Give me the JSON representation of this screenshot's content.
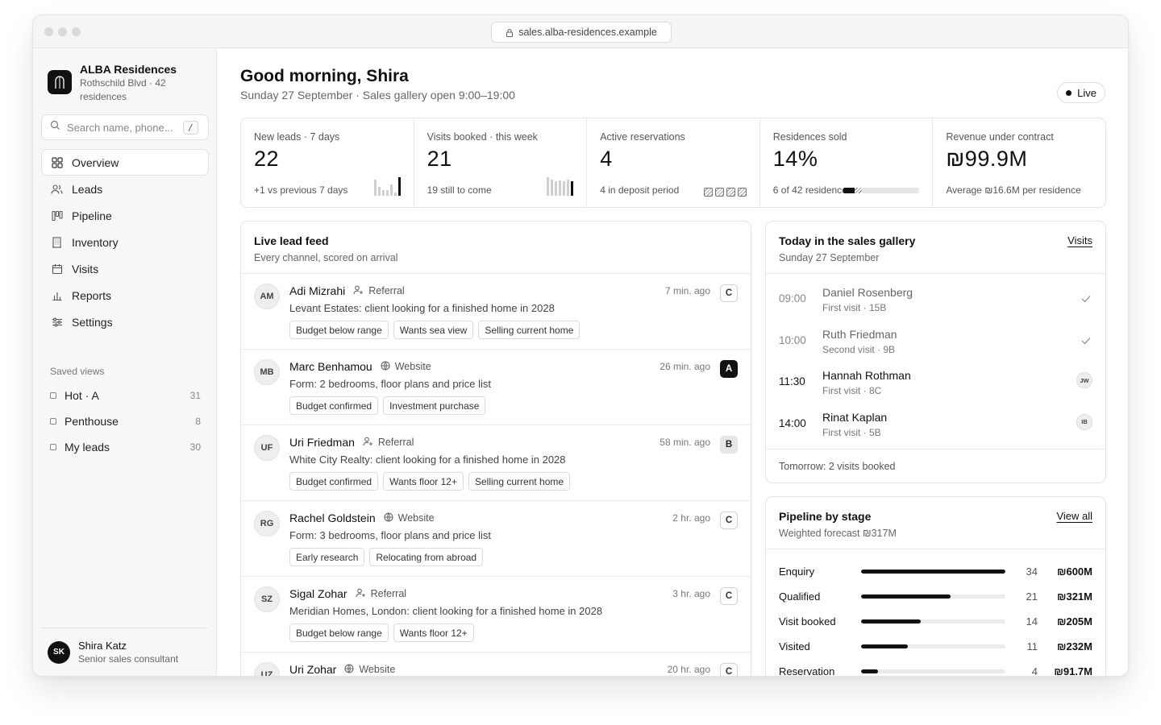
{
  "browser": {
    "url": "sales.alba-residences.example"
  },
  "sidebar": {
    "brand_name": "ALBA Residences",
    "brand_sub": "Rothschild Blvd · 42 residences",
    "search_placeholder": "Search name, phone...",
    "search_shortcut": "/",
    "nav": [
      {
        "label": "Overview",
        "icon": "grid-icon",
        "active": true
      },
      {
        "label": "Leads",
        "icon": "users-icon"
      },
      {
        "label": "Pipeline",
        "icon": "kanban-icon"
      },
      {
        "label": "Inventory",
        "icon": "building-icon"
      },
      {
        "label": "Visits",
        "icon": "calendar-icon"
      },
      {
        "label": "Reports",
        "icon": "bar-chart-icon"
      },
      {
        "label": "Settings",
        "icon": "sliders-icon"
      }
    ],
    "saved_title": "Saved views",
    "saved": [
      {
        "label": "Hot · A",
        "count": "31"
      },
      {
        "label": "Penthouse",
        "count": "8"
      },
      {
        "label": "My leads",
        "count": "30"
      }
    ],
    "user": {
      "initials": "SK",
      "name": "Shira Katz",
      "role": "Senior sales consultant"
    }
  },
  "header": {
    "greeting": "Good morning, Shira",
    "subline": "Sunday 27 September · Sales gallery open 9:00–19:00",
    "live": "Live"
  },
  "kpis": [
    {
      "label": "New leads · 7 days",
      "value": "22",
      "note": "+1 vs previous 7 days",
      "spark": [
        0.85,
        0.45,
        0.3,
        0.3,
        0.6,
        0.15,
        0.95
      ]
    },
    {
      "label": "Visits booked · this week",
      "value": "21",
      "note": "19 still to come",
      "spark": [
        0.95,
        0.85,
        0.75,
        0.8,
        0.75,
        0.85,
        0.75
      ]
    },
    {
      "label": "Active reservations",
      "value": "4",
      "note": "4 in deposit period",
      "deposits": 4
    },
    {
      "label": "Residences sold",
      "value": "14%",
      "note": "6 of 42 residences",
      "sold": 6,
      "deposit": 4,
      "total": 42
    },
    {
      "label": "Revenue under contract",
      "value": "₪99.9M",
      "note": "Average ₪16.6M per residence"
    }
  ],
  "feed": {
    "title": "Live lead feed",
    "subtitle": "Every channel, scored on arrival",
    "leads": [
      {
        "initials": "AM",
        "name": "Adi Mizrahi",
        "source": "Referral",
        "source_icon": "person-plus-icon",
        "time": "7 min. ago",
        "grade": "C",
        "desc": "Levant Estates: client looking for a finished home in 2028",
        "tags": [
          "Budget below range",
          "Wants sea view",
          "Selling current home"
        ]
      },
      {
        "initials": "MB",
        "name": "Marc Benhamou",
        "source": "Website",
        "source_icon": "globe-icon",
        "time": "26 min. ago",
        "grade": "A",
        "desc": "Form: 2 bedrooms, floor plans and price list",
        "tags": [
          "Budget confirmed",
          "Investment purchase"
        ]
      },
      {
        "initials": "UF",
        "name": "Uri Friedman",
        "source": "Referral",
        "source_icon": "person-plus-icon",
        "time": "58 min. ago",
        "grade": "B",
        "desc": "White City Realty: client looking for a finished home in 2028",
        "tags": [
          "Budget confirmed",
          "Wants floor 12+",
          "Selling current home"
        ]
      },
      {
        "initials": "RG",
        "name": "Rachel Goldstein",
        "source": "Website",
        "source_icon": "globe-icon",
        "time": "2 hr. ago",
        "grade": "C",
        "desc": "Form: 3 bedrooms, floor plans and price list",
        "tags": [
          "Early research",
          "Relocating from abroad"
        ]
      },
      {
        "initials": "SZ",
        "name": "Sigal Zohar",
        "source": "Referral",
        "source_icon": "person-plus-icon",
        "time": "3 hr. ago",
        "grade": "C",
        "desc": "Meridian Homes, London: client looking for a finished home in 2028",
        "tags": [
          "Budget below range",
          "Wants floor 12+"
        ]
      },
      {
        "initials": "UZ",
        "name": "Uri Zohar",
        "source": "Website",
        "source_icon": "globe-icon",
        "time": "20 hr. ago",
        "grade": "C",
        "desc": "",
        "tags": []
      }
    ]
  },
  "gallery": {
    "title": "Today in the sales gallery",
    "subtitle": "Sunday 27 September",
    "link": "Visits",
    "visits": [
      {
        "time": "09:00",
        "name": "Daniel Rosenberg",
        "meta": "First visit · 15B",
        "done": true
      },
      {
        "time": "10:00",
        "name": "Ruth Friedman",
        "meta": "Second visit · 9B",
        "done": true
      },
      {
        "time": "11:30",
        "name": "Hannah Rothman",
        "meta": "First visit · 8C",
        "done": false,
        "agent": "JW"
      },
      {
        "time": "14:00",
        "name": "Rinat Kaplan",
        "meta": "First visit · 5B",
        "done": false,
        "agent": "IB"
      }
    ],
    "footer": "Tomorrow: 2 visits booked"
  },
  "pipeline": {
    "title": "Pipeline by stage",
    "subtitle": "Weighted forecast ₪317M",
    "link": "View all",
    "stages": [
      {
        "label": "Enquiry",
        "count": 34,
        "value": "₪600M"
      },
      {
        "label": "Qualified",
        "count": 21,
        "value": "₪321M"
      },
      {
        "label": "Visit booked",
        "count": 14,
        "value": "₪205M"
      },
      {
        "label": "Visited",
        "count": 11,
        "value": "₪232M"
      },
      {
        "label": "Reservation",
        "count": 4,
        "value": "₪91.7M"
      }
    ],
    "max_count": 34
  }
}
